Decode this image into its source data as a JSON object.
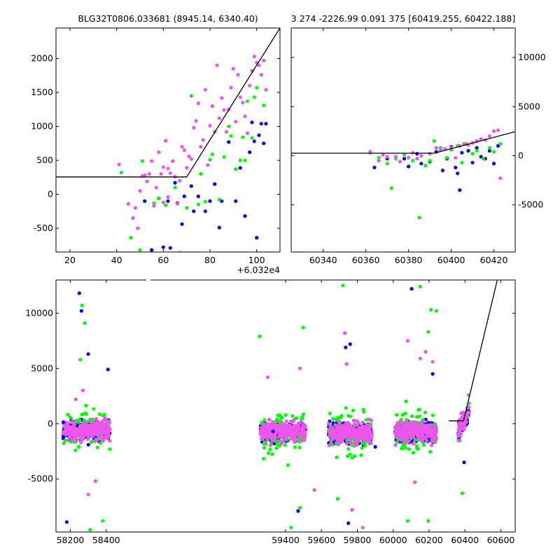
{
  "chart_data": [
    {
      "type": "scatter",
      "title": "BLG32T0806.033681 (8945.14, 6340.40)",
      "xlabel": "",
      "ylabel": "",
      "x_offset_label": "+6.032e4",
      "xlim": [
        14,
        110
      ],
      "ylim": [
        -850,
        2450
      ],
      "xticks": [
        20,
        40,
        60,
        80,
        100
      ],
      "yticks": [
        -500,
        0,
        500,
        1000,
        1500,
        2000
      ],
      "ytick_side": "left",
      "series": [
        {
          "color": "#0000ff",
          "points": [
            [
              52,
              -100
            ],
            [
              55,
              -820
            ],
            [
              58,
              -60
            ],
            [
              60,
              -780
            ],
            [
              62,
              -100
            ],
            [
              63,
              -790
            ],
            [
              65,
              170
            ],
            [
              66,
              -130
            ],
            [
              68,
              -440
            ],
            [
              69,
              -30
            ],
            [
              72,
              120
            ],
            [
              73,
              -250
            ],
            [
              75,
              -30
            ],
            [
              78,
              -250
            ],
            [
              80,
              -100
            ],
            [
              82,
              150
            ],
            [
              84,
              -490
            ],
            [
              85,
              -100
            ],
            [
              88,
              770
            ],
            [
              91,
              -100
            ],
            [
              93,
              390
            ],
            [
              95,
              -320
            ],
            [
              97,
              620
            ],
            [
              98,
              1060
            ],
            [
              99,
              780
            ],
            [
              100,
              -640
            ],
            [
              101,
              870
            ],
            [
              102,
              1040
            ],
            [
              103,
              750
            ],
            [
              104,
              1040
            ]
          ]
        },
        {
          "color": "#00ff00",
          "points": [
            [
              42,
              320
            ],
            [
              46,
              -640
            ],
            [
              50,
              -820
            ],
            [
              51,
              490
            ],
            [
              56,
              -130
            ],
            [
              58,
              -60
            ],
            [
              61,
              -160
            ],
            [
              65,
              100
            ],
            [
              70,
              -200
            ],
            [
              72,
              1450
            ],
            [
              75,
              -150
            ],
            [
              76,
              300
            ],
            [
              78,
              -110
            ],
            [
              80,
              510
            ],
            [
              81,
              590
            ],
            [
              84,
              -80
            ],
            [
              86,
              550
            ],
            [
              88,
              1000
            ],
            [
              89,
              860
            ],
            [
              91,
              370
            ],
            [
              93,
              500
            ],
            [
              94,
              840
            ],
            [
              95,
              500
            ],
            [
              96,
              1370
            ],
            [
              98,
              830
            ],
            [
              99,
              1430
            ],
            [
              100,
              1570
            ],
            [
              103,
              1310
            ]
          ]
        },
        {
          "color": "#ee55ee",
          "points": [
            [
              41,
              440
            ],
            [
              45,
              -140
            ],
            [
              47,
              -350
            ],
            [
              48,
              -200
            ],
            [
              49,
              -500
            ],
            [
              50,
              50
            ],
            [
              51,
              270
            ],
            [
              52,
              280
            ],
            [
              53,
              190
            ],
            [
              54,
              300
            ],
            [
              55,
              490
            ],
            [
              56,
              -170
            ],
            [
              57,
              100
            ],
            [
              58,
              620
            ],
            [
              59,
              300
            ],
            [
              60,
              400
            ],
            [
              61,
              790
            ],
            [
              62,
              380
            ],
            [
              63,
              310
            ],
            [
              64,
              490
            ],
            [
              65,
              260
            ],
            [
              66,
              -140
            ],
            [
              67,
              200
            ],
            [
              68,
              700
            ],
            [
              69,
              650
            ],
            [
              70,
              390
            ],
            [
              71,
              560
            ],
            [
              72,
              520
            ],
            [
              73,
              980
            ],
            [
              74,
              1080
            ],
            [
              75,
              1340
            ],
            [
              76,
              700
            ],
            [
              77,
              800
            ],
            [
              78,
              1540
            ],
            [
              79,
              430
            ],
            [
              80,
              1010
            ],
            [
              81,
              1300
            ],
            [
              82,
              920
            ],
            [
              83,
              1900
            ],
            [
              84,
              1120
            ],
            [
              85,
              1420
            ],
            [
              86,
              1240
            ],
            [
              87,
              920
            ],
            [
              88,
              1250
            ],
            [
              89,
              1570
            ],
            [
              90,
              1850
            ],
            [
              91,
              1070
            ],
            [
              92,
              1760
            ],
            [
              93,
              1430
            ],
            [
              94,
              1350
            ],
            [
              95,
              1150
            ],
            [
              96,
              900
            ],
            [
              97,
              1600
            ],
            [
              98,
              1820
            ],
            [
              99,
              2030
            ],
            [
              100,
              1940
            ],
            [
              101,
              1900
            ],
            [
              102,
              1760
            ],
            [
              103,
              1970
            ],
            [
              104,
              1540
            ],
            [
              67,
              -860
            ],
            [
              60,
              -120
            ],
            [
              62,
              -40
            ]
          ]
        }
      ],
      "fit_line": [
        [
          14,
          255
        ],
        [
          70,
          255
        ],
        [
          110,
          2450
        ]
      ]
    },
    {
      "type": "scatter",
      "title": "3 274 -2226.99 0.091 375 [60419.255, 60422.188]",
      "xlabel": "",
      "ylabel": "",
      "xlim": [
        60325,
        60430
      ],
      "ylim": [
        -9800,
        13000
      ],
      "xticks": [
        60340,
        60360,
        60380,
        60400,
        60420
      ],
      "yticks": [
        -5000,
        0,
        5000,
        10000
      ],
      "ytick_side": "right",
      "series": [
        {
          "color": "#0000ff",
          "points": [
            [
              60364,
              -1200
            ],
            [
              60370,
              -300
            ],
            [
              60378,
              -300
            ],
            [
              60380,
              -1100
            ],
            [
              60384,
              200
            ],
            [
              60386,
              -800
            ],
            [
              60390,
              -600
            ],
            [
              60393,
              400
            ],
            [
              60396,
              -1500
            ],
            [
              60398,
              -300
            ],
            [
              60400,
              900
            ],
            [
              60402,
              -1200
            ],
            [
              60403,
              -1800
            ],
            [
              60404,
              -3500
            ],
            [
              60405,
              300
            ],
            [
              60408,
              500
            ],
            [
              60410,
              -700
            ],
            [
              60412,
              800
            ],
            [
              60414,
              -100
            ],
            [
              60416,
              -300
            ],
            [
              60418,
              500
            ],
            [
              60420,
              -800
            ],
            [
              60422,
              1000
            ]
          ]
        },
        {
          "color": "#00ff00",
          "points": [
            [
              60362,
              300
            ],
            [
              60366,
              -200
            ],
            [
              60370,
              -800
            ],
            [
              60372,
              -3300
            ],
            [
              60374,
              -300
            ],
            [
              60378,
              100
            ],
            [
              60382,
              -500
            ],
            [
              60385,
              -6300
            ],
            [
              60388,
              -1000
            ],
            [
              60390,
              -500
            ],
            [
              60392,
              1500
            ],
            [
              60395,
              800
            ],
            [
              60398,
              -200
            ],
            [
              60400,
              600
            ],
            [
              60403,
              1000
            ],
            [
              60405,
              -700
            ],
            [
              60407,
              1200
            ],
            [
              60410,
              200
            ],
            [
              60412,
              500
            ],
            [
              60415,
              -300
            ],
            [
              60418,
              800
            ],
            [
              60420,
              400
            ],
            [
              60423,
              1200
            ]
          ]
        },
        {
          "color": "#ee55ee",
          "points": [
            [
              60362,
              400
            ],
            [
              60366,
              -500
            ],
            [
              60368,
              100
            ],
            [
              60370,
              -100
            ],
            [
              60374,
              -100
            ],
            [
              60376,
              -600
            ],
            [
              60380,
              -200
            ],
            [
              60382,
              300
            ],
            [
              60384,
              -300
            ],
            [
              60386,
              0
            ],
            [
              60390,
              200
            ],
            [
              60393,
              800
            ],
            [
              60395,
              600
            ],
            [
              60397,
              700
            ],
            [
              60400,
              800
            ],
            [
              60402,
              -200
            ],
            [
              60404,
              1000
            ],
            [
              60406,
              1200
            ],
            [
              60408,
              1100
            ],
            [
              60410,
              1300
            ],
            [
              60412,
              1500
            ],
            [
              60414,
              1700
            ],
            [
              60416,
              1600
            ],
            [
              60418,
              2000
            ],
            [
              60420,
              2500
            ],
            [
              60422,
              2600
            ],
            [
              60423,
              -2300
            ]
          ]
        }
      ],
      "fit_line": [
        [
          60325,
          255
        ],
        [
          60392,
          255
        ],
        [
          60430,
          2450
        ]
      ]
    },
    {
      "type": "scatter",
      "title": "",
      "xlabel": "",
      "ylabel": "",
      "xlim": [
        58120,
        60680
      ],
      "ylim": [
        -9800,
        13000
      ],
      "xticks": [
        58200,
        58400,
        59400,
        59600,
        59800,
        60000,
        60200,
        60400,
        60600
      ],
      "yticks": [
        -5000,
        0,
        5000,
        10000
      ],
      "ytick_side": "left",
      "seasons": [
        {
          "range": [
            58160,
            58420
          ],
          "center": -600,
          "spread": 750
        },
        {
          "range": [
            59260,
            59510
          ],
          "center": -700,
          "spread": 750
        },
        {
          "range": [
            59640,
            59880
          ],
          "center": -800,
          "spread": 800
        },
        {
          "range": [
            60010,
            60240
          ],
          "center": -700,
          "spread": 750
        },
        {
          "range": [
            60362,
            60423
          ],
          "center": 100,
          "spread": 800
        }
      ],
      "outliers": [
        {
          "color": "#0000ff",
          "points": [
            [
              58250,
              11800
            ],
            [
              58262,
              10200
            ],
            [
              58300,
              6300
            ],
            [
              58410,
              4900
            ],
            [
              58180,
              -8900
            ],
            [
              59330,
              -700
            ],
            [
              59470,
              -7900
            ],
            [
              59735,
              6900
            ],
            [
              59760,
              7200
            ],
            [
              59750,
              -9000
            ],
            [
              60103,
              12200
            ],
            [
              60220,
              4500
            ],
            [
              60395,
              -3500
            ],
            [
              59900,
              -2100
            ]
          ]
        },
        {
          "color": "#00ff00",
          "points": [
            [
              58280,
              9100
            ],
            [
              58265,
              10700
            ],
            [
              58255,
              5800
            ],
            [
              58380,
              -8800
            ],
            [
              58310,
              -9600
            ],
            [
              59255,
              7900
            ],
            [
              59497,
              8700
            ],
            [
              59430,
              -9400
            ],
            [
              59720,
              12500
            ],
            [
              59690,
              -6800
            ],
            [
              60150,
              12400
            ],
            [
              60210,
              10300
            ],
            [
              60195,
              8300
            ],
            [
              60240,
              10200
            ],
            [
              60195,
              -8800
            ],
            [
              60385,
              -6300
            ],
            [
              60080,
              -8800
            ],
            [
              59480,
              -7600
            ]
          ]
        },
        {
          "color": "#ee55ee",
          "points": [
            [
              58230,
              2200
            ],
            [
              58270,
              3000
            ],
            [
              58300,
              -6400
            ],
            [
              58340,
              -5200
            ],
            [
              59300,
              4200
            ],
            [
              59480,
              5000
            ],
            [
              59560,
              -6000
            ],
            [
              59730,
              8200
            ],
            [
              59740,
              5400
            ],
            [
              59770,
              -7800
            ],
            [
              59830,
              -9400
            ],
            [
              60080,
              7500
            ],
            [
              60150,
              5900
            ],
            [
              60180,
              6500
            ],
            [
              60220,
              5600
            ],
            [
              60120,
              -5300
            ],
            [
              60420,
              2600
            ]
          ]
        }
      ],
      "fit_line": [
        [
          60310,
          255
        ],
        [
          60392,
          255
        ],
        [
          60580,
          13000
        ]
      ]
    }
  ]
}
